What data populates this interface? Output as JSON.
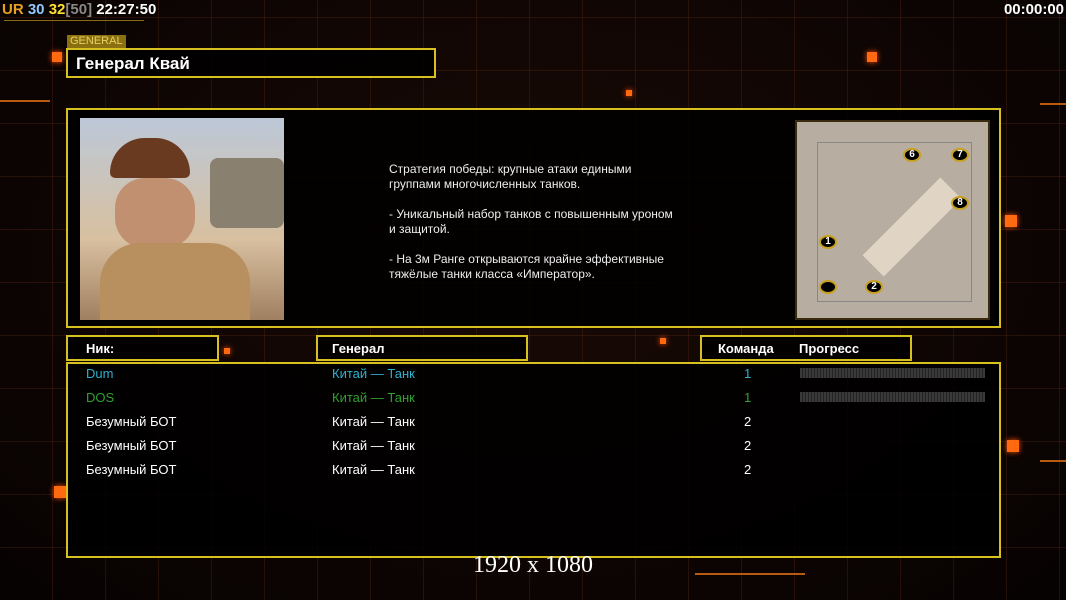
{
  "hud": {
    "ur": "UR",
    "a": "30",
    "b": "32",
    "c": "[50]",
    "clock": "22:27:50",
    "timer": "00:00:00"
  },
  "general": {
    "tag": "GENERAL",
    "name": "Генерал Квай",
    "description": "Стратегия победы: крупные атаки едиными\n группами многочисленных танков.\n\n- Уникальный набор танков с повышенным уроном\n и защитой.\n\n- На 3м Ранге открываются крайне эффективные\n тяжёлые танки класса «Император»."
  },
  "map": {
    "markers": [
      "1",
      "2",
      "",
      "6",
      "7",
      "8"
    ]
  },
  "table": {
    "headers": {
      "nick": "Ник:",
      "general": "Генерал",
      "team": "Команда",
      "progress": "Прогресс"
    },
    "rows": [
      {
        "nick": "Dum",
        "general": "Китай — Танк",
        "team": "1",
        "color": "#30b0d0",
        "progress": 0
      },
      {
        "nick": "DOS",
        "general": "Китай — Танк",
        "team": "1",
        "color": "#30a030",
        "progress": 0
      },
      {
        "nick": "Безумный БОТ",
        "general": "Китай — Танк",
        "team": "2",
        "color": "#ffffff"
      },
      {
        "nick": "Безумный БОТ",
        "general": "Китай — Танк",
        "team": "2",
        "color": "#ffffff"
      },
      {
        "nick": "Безумный БОТ",
        "general": "Китай — Танк",
        "team": "2",
        "color": "#ffffff"
      }
    ]
  },
  "resolution": "1920 x 1080",
  "colors": {
    "accent": "#d8c020",
    "orange": "#ff6a10"
  }
}
